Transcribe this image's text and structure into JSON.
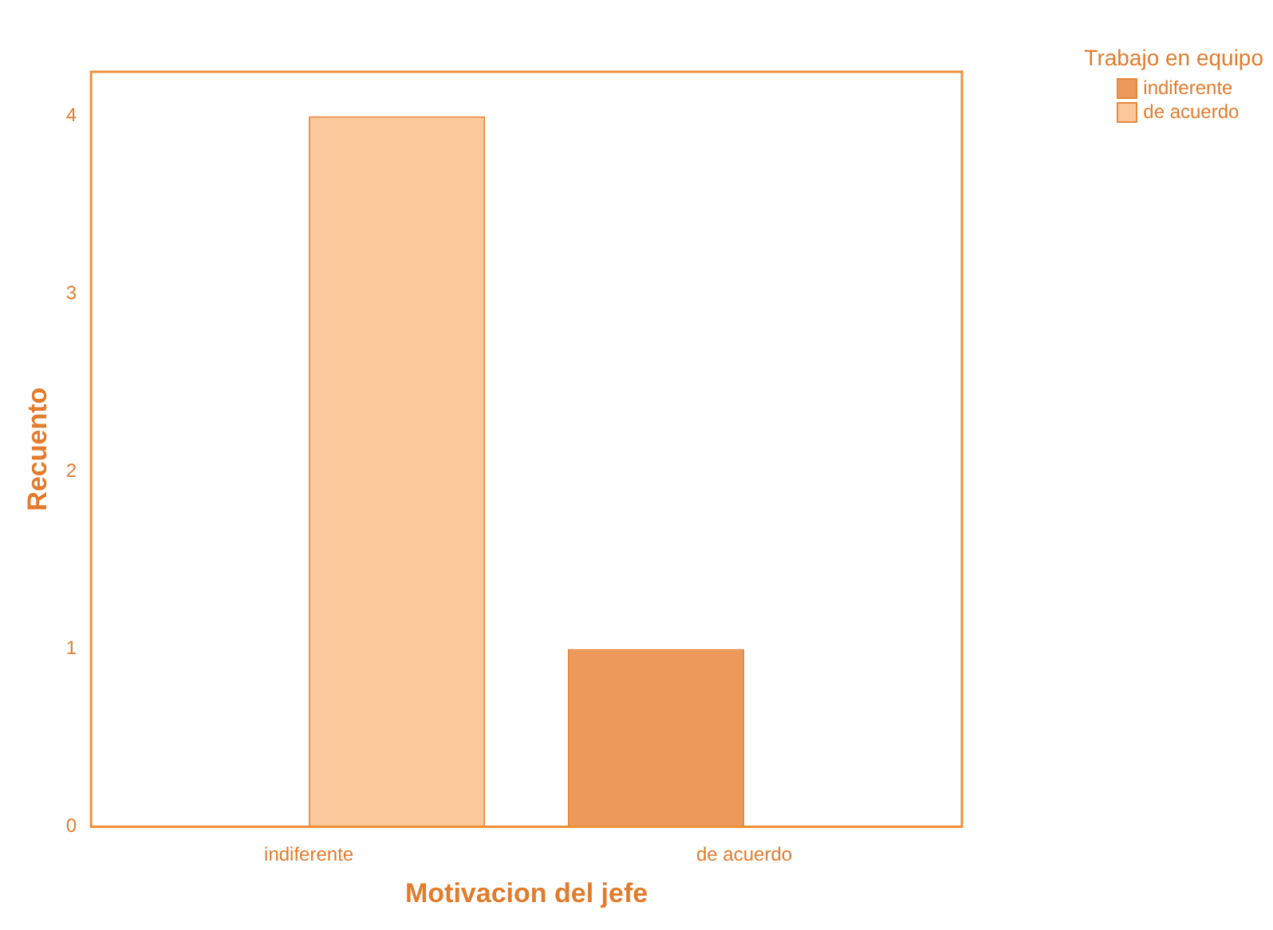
{
  "chart_data": {
    "type": "bar",
    "xlabel": "Motivacion del jefe",
    "ylabel": "Recuento",
    "legend_title": "Trabajo en equipo",
    "categories": [
      "indiferente",
      "de acuerdo"
    ],
    "series": [
      {
        "name": "indiferente",
        "color": "#eb9a5c",
        "values": [
          0,
          1
        ]
      },
      {
        "name": "de acuerdo",
        "color": "#fbc89c",
        "values": [
          4,
          0
        ]
      }
    ],
    "ylim": [
      0,
      4.25
    ],
    "yticks": [
      0,
      1,
      2,
      3,
      4
    ],
    "grid": false,
    "legend": "top right"
  }
}
